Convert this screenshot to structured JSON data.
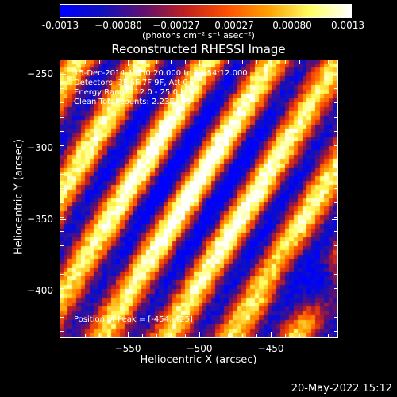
{
  "title": "Reconstructed RHESSI Image",
  "colorbar": {
    "tick_labels": [
      "-0.0013",
      "−0.00080",
      "−0.00027",
      "0.00027",
      "0.00080",
      "0.0013"
    ],
    "units_text": "(photons cm⁻² s⁻¹ asec⁻²)",
    "range": [
      -0.0013,
      0.0013
    ]
  },
  "axes": {
    "xlabel": "Heliocentric X (arcsec)",
    "ylabel": "Heliocentric Y (arcsec)",
    "x_ticks": [
      "−550",
      "−500",
      "−450"
    ],
    "y_ticks": [
      "−250",
      "−300",
      "−350",
      "−400"
    ],
    "xlim": [
      -595,
      -415
    ],
    "ylim": [
      -432,
      -237
    ]
  },
  "info": {
    "line1": "15-Dec-2014 13:50:20.000 to 13:54:12.000",
    "line2": "Detectors: 3F 6F 7F 9F, Att 0",
    "line3": "Energy Range: 12.0 - 25.0 keV",
    "line4": "Clean   Total counts: 2.23E+03",
    "peak": "Position of Peak = [-454,-425]"
  },
  "timestamp": "20-May-2022 15:12",
  "colors": {
    "background": "#000000",
    "foreground": "#ffffff",
    "colormap": [
      "#0000ff",
      "#1010c0",
      "#601070",
      "#c02020",
      "#ff5000",
      "#ffa000",
      "#ffff60",
      "#ffffff"
    ]
  }
}
